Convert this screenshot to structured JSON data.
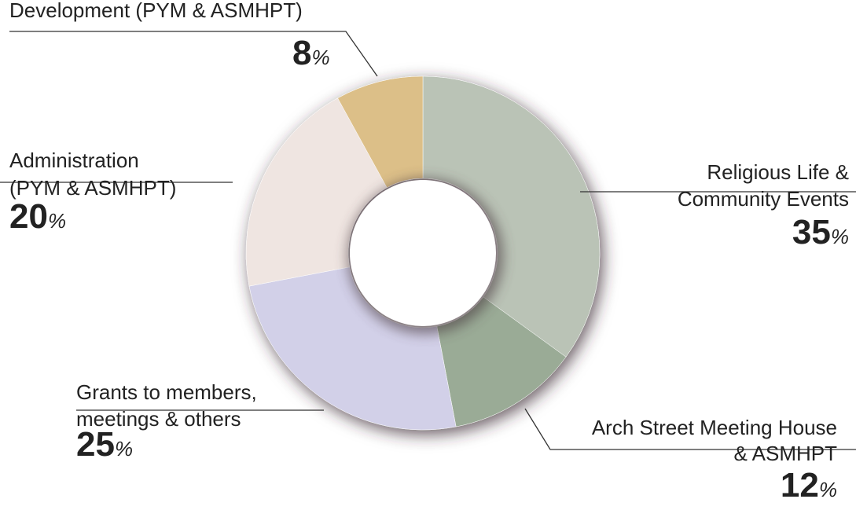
{
  "chart_data": {
    "type": "pie",
    "donut": true,
    "unit": "%",
    "categories": [
      [
        "Religious Life &",
        "Community Events"
      ],
      [
        "Arch Street Meeting House",
        "& ASMHPT"
      ],
      [
        "Grants to members,",
        "meetings & others"
      ],
      [
        "Administration",
        "(PYM & ASMHPT)"
      ],
      [
        "Development (PYM & ASMHPT)"
      ]
    ],
    "values": [
      35,
      12,
      25,
      20,
      8
    ],
    "colors": [
      "#bac3b6",
      "#9aab96",
      "#d2d0e8",
      "#efe5e1",
      "#dcbf88"
    ]
  }
}
